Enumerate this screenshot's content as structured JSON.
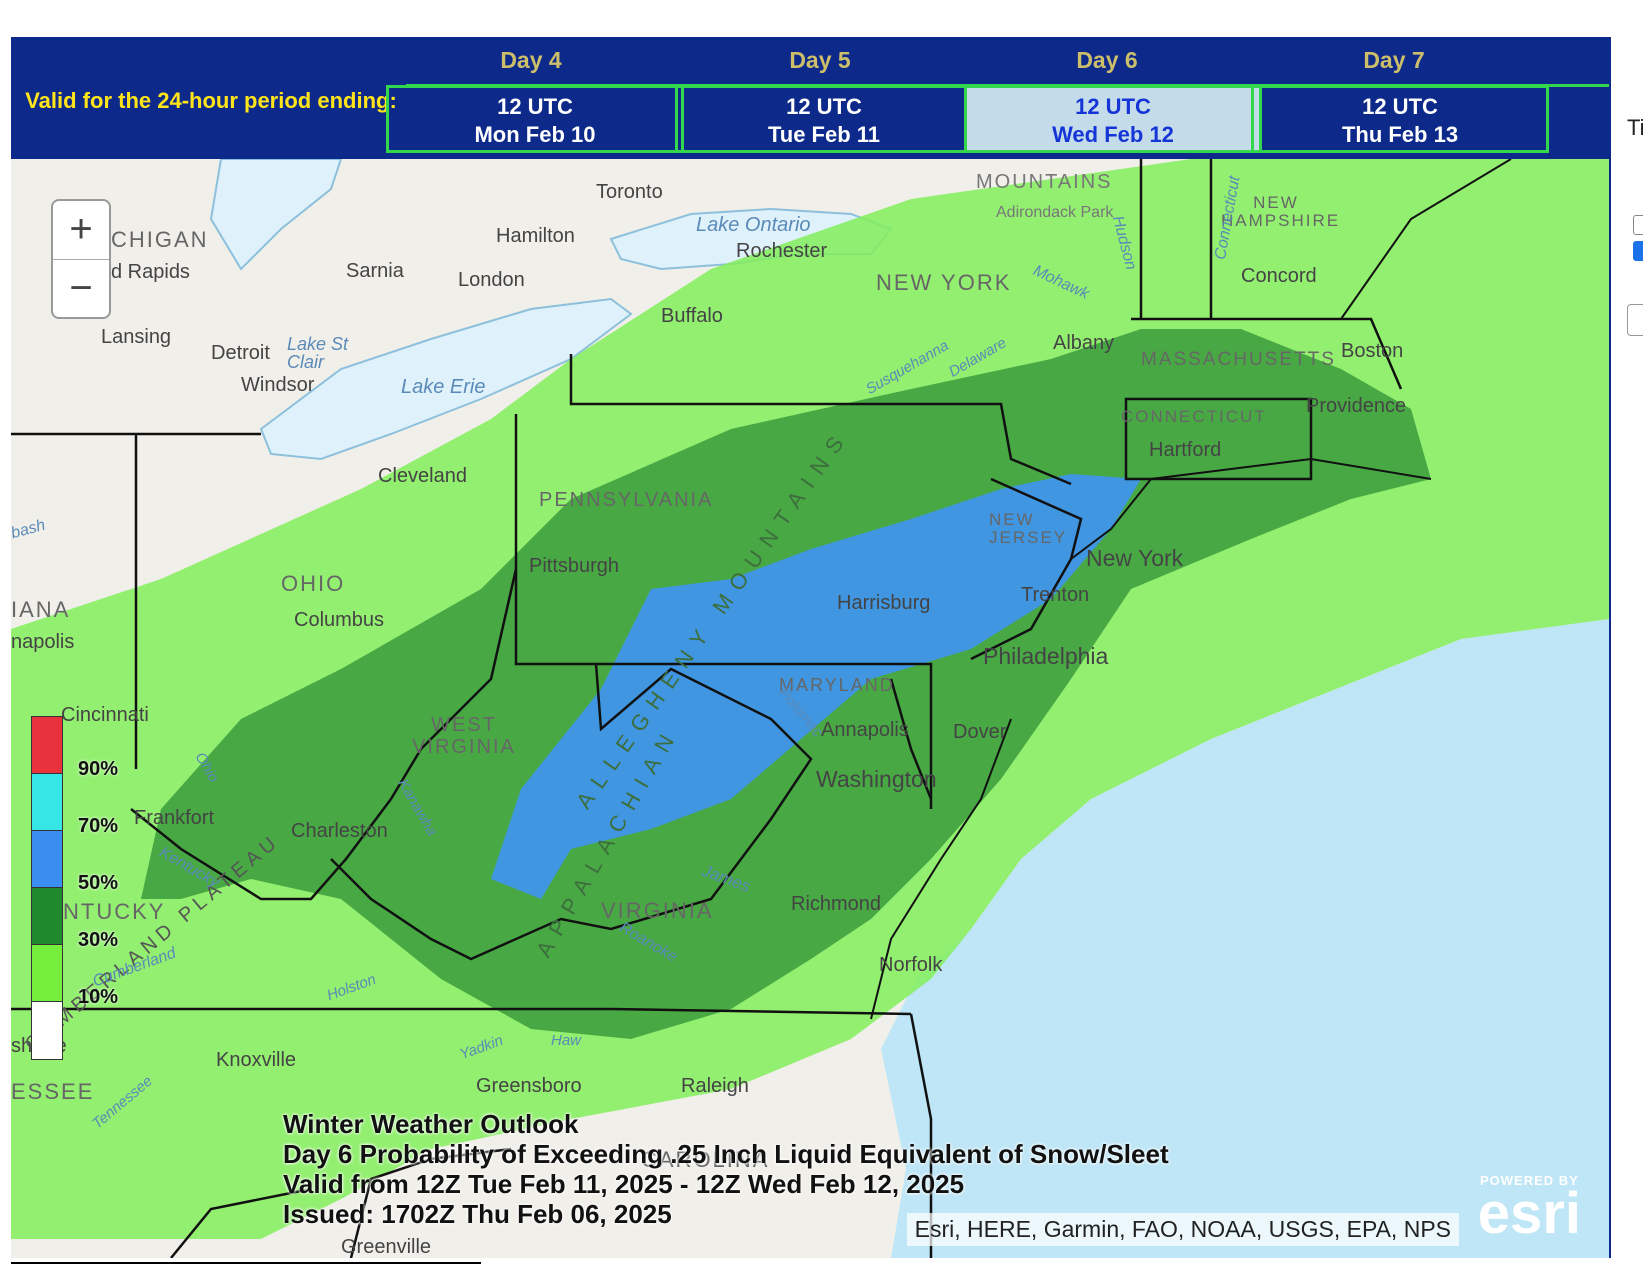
{
  "header": {
    "valid_label": "Valid for the 24-hour period ending:",
    "days": [
      {
        "day": "Day 4",
        "time": "12 UTC",
        "date": "Mon Feb 10",
        "active": false
      },
      {
        "day": "Day 5",
        "time": "12 UTC",
        "date": "Tue Feb 11",
        "active": false
      },
      {
        "day": "Day 6",
        "time": "12 UTC",
        "date": "Wed Feb 12",
        "active": true
      },
      {
        "day": "Day 7",
        "time": "12 UTC",
        "date": "Thu Feb 13",
        "active": false
      }
    ]
  },
  "side_panel": {
    "text": "Ti"
  },
  "map": {
    "zoom_in": "+",
    "zoom_out": "−",
    "legend": {
      "labels": [
        "90%",
        "70%",
        "50%",
        "30%",
        "10%"
      ],
      "colors": [
        "#e8323c",
        "#36e6e6",
        "#3a8ef0",
        "#1d8a2b",
        "#76ee3c",
        "#ffffff"
      ]
    },
    "caption": {
      "line1": "Winter Weather Outlook",
      "line2": "Day 6 Probability of Exceeding .25 Inch Liquid Equivalent of Snow/Sleet",
      "line3": "Valid from 12Z Tue Feb 11, 2025 - 12Z Wed Feb 12, 2025",
      "line4": "Issued: 1702Z Thu Feb 06, 2025"
    },
    "attribution": "Esri, HERE, Garmin, FAO, NOAA, USGS, EPA, NPS",
    "esri": {
      "powered": "POWERED BY",
      "logo": "esri"
    },
    "places": [
      "Toronto",
      "Hamilton",
      "Sarnia",
      "London",
      "Lansing",
      "Detroit",
      "Windsor",
      "Buffalo",
      "Rochester",
      "Albany",
      "Concord",
      "Boston",
      "Providence",
      "Hartford",
      "Cleveland",
      "Pittsburgh",
      "Harrisburg",
      "Trenton",
      "New York",
      "Philadelphia",
      "Columbus",
      "Cincinnati",
      "Frankfort",
      "Charleston",
      "Annapolis",
      "Dover",
      "Washington",
      "Richmond",
      "Norfolk",
      "Knoxville",
      "Raleigh",
      "Greensboro",
      "Greenville",
      "napolis",
      "d Rapids",
      "shville"
    ],
    "regions": [
      "CHIGAN",
      "NEW YORK",
      "NEW HAMPSHIRE",
      "MASSACHUSETTS",
      "CONNECTICUT",
      "PENNSYLVANIA",
      "NEW JERSEY",
      "OHIO",
      "IANA",
      "WEST VIRGINIA",
      "MARYLAND",
      "VIRGINIA",
      "NTUCKY",
      "ESSEE",
      "CAROLINA",
      "CUMBERLAND PLATEAU",
      "ALLEGHENY MOUNTAINS",
      "APPALACHIAN",
      "MOUNTAINS",
      "Adirondack Park"
    ],
    "water": [
      "Lake Ontario",
      "Lake Erie",
      "Lake St Clair",
      "Mohawk",
      "Hudson",
      "Connecticut",
      "Susquehanna",
      "Delaware",
      "Potomac",
      "James",
      "Roanoke",
      "Kanawha",
      "Kentucky",
      "Cumberland",
      "Tennessee",
      "Holston",
      "Yadkin",
      "Haw",
      "Ohio",
      "bash"
    ]
  }
}
